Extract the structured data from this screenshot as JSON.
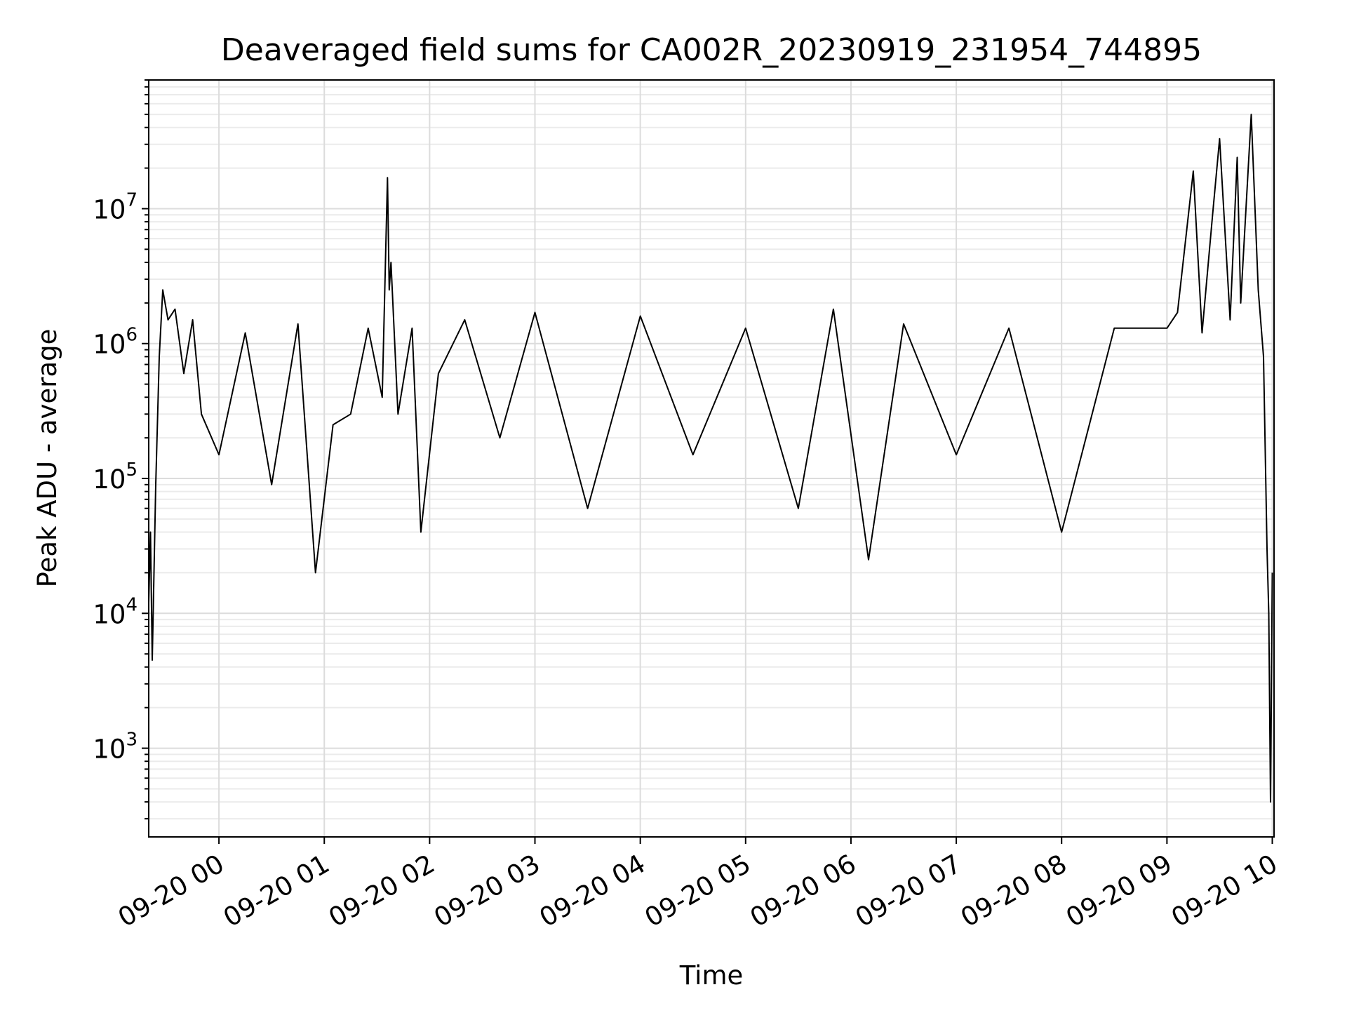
{
  "chart_data": {
    "type": "line",
    "title": "Deaveraged field sums for CA002R_20230919_231954_744895",
    "xlabel": "Time",
    "ylabel": "Peak ADU - average",
    "y_scale": "log",
    "ylim": [
      220,
      90000000
    ],
    "xlim": [
      "2023-09-19 23:20",
      "2023-09-20 10:01"
    ],
    "x_tick_labels": [
      "09-20 00",
      "09-20 01",
      "09-20 02",
      "09-20 03",
      "09-20 04",
      "09-20 05",
      "09-20 06",
      "09-20 07",
      "09-20 08",
      "09-20 09",
      "09-20 10"
    ],
    "x_tick_values": [
      "2023-09-20 00:00",
      "2023-09-20 01:00",
      "2023-09-20 02:00",
      "2023-09-20 03:00",
      "2023-09-20 04:00",
      "2023-09-20 05:00",
      "2023-09-20 06:00",
      "2023-09-20 07:00",
      "2023-09-20 08:00",
      "2023-09-20 09:00",
      "2023-09-20 10:00"
    ],
    "y_tick_labels": [
      {
        "base": "10",
        "exp": "3"
      },
      {
        "base": "10",
        "exp": "4"
      },
      {
        "base": "10",
        "exp": "5"
      },
      {
        "base": "10",
        "exp": "6"
      },
      {
        "base": "10",
        "exp": "7"
      }
    ],
    "y_tick_values": [
      1000,
      10000,
      100000,
      1000000,
      10000000
    ],
    "grid": true,
    "line_color": "#000000",
    "series": [
      {
        "x": [
          "2023-09-19 23:20",
          "2023-09-19 23:21",
          "2023-09-19 23:22",
          "2023-09-19 23:24",
          "2023-09-19 23:26",
          "2023-09-19 23:28",
          "2023-09-19 23:31",
          "2023-09-19 23:35",
          "2023-09-19 23:40",
          "2023-09-19 23:45",
          "2023-09-19 23:50",
          "2023-09-20 00:00",
          "2023-09-20 00:15",
          "2023-09-20 00:30",
          "2023-09-20 00:45",
          "2023-09-20 00:55",
          "2023-09-20 01:05",
          "2023-09-20 01:15",
          "2023-09-20 01:25",
          "2023-09-20 01:33",
          "2023-09-20 01:36",
          "2023-09-20 01:37",
          "2023-09-20 01:38",
          "2023-09-20 01:42",
          "2023-09-20 01:50",
          "2023-09-20 01:55",
          "2023-09-20 02:05",
          "2023-09-20 02:20",
          "2023-09-20 02:40",
          "2023-09-20 03:00",
          "2023-09-20 03:30",
          "2023-09-20 04:00",
          "2023-09-20 04:30",
          "2023-09-20 05:00",
          "2023-09-20 05:30",
          "2023-09-20 05:50",
          "2023-09-20 06:10",
          "2023-09-20 06:30",
          "2023-09-20 07:00",
          "2023-09-20 07:30",
          "2023-09-20 08:00",
          "2023-09-20 08:30",
          "2023-09-20 09:00",
          "2023-09-20 09:06",
          "2023-09-20 09:15",
          "2023-09-20 09:20",
          "2023-09-20 09:26",
          "2023-09-20 09:30",
          "2023-09-20 09:36",
          "2023-09-20 09:40",
          "2023-09-20 09:42",
          "2023-09-20 09:48",
          "2023-09-20 09:52",
          "2023-09-20 09:55",
          "2023-09-20 09:57",
          "2023-09-20 09:58",
          "2023-09-20 09:59",
          "2023-09-20 10:00"
        ],
        "y": [
          12000,
          40000,
          4500,
          90000,
          800000,
          2500000,
          1500000,
          1800000,
          600000,
          1500000,
          300000,
          150000,
          1200000,
          90000,
          1400000,
          20000,
          250000,
          300000,
          1300000,
          400000,
          17000000,
          2500000,
          4000000,
          300000,
          1300000,
          40000,
          600000,
          1500000,
          200000,
          1700000,
          60000,
          1600000,
          150000,
          1300000,
          60000,
          1800000,
          25000,
          1400000,
          150000,
          1300000,
          40000,
          1300000,
          1300000,
          1700000,
          19000000,
          1200000,
          9000000,
          33000000,
          1500000,
          24000000,
          2000000,
          50000000,
          2500000,
          800000,
          30000,
          10000,
          400,
          20000
        ]
      }
    ]
  }
}
